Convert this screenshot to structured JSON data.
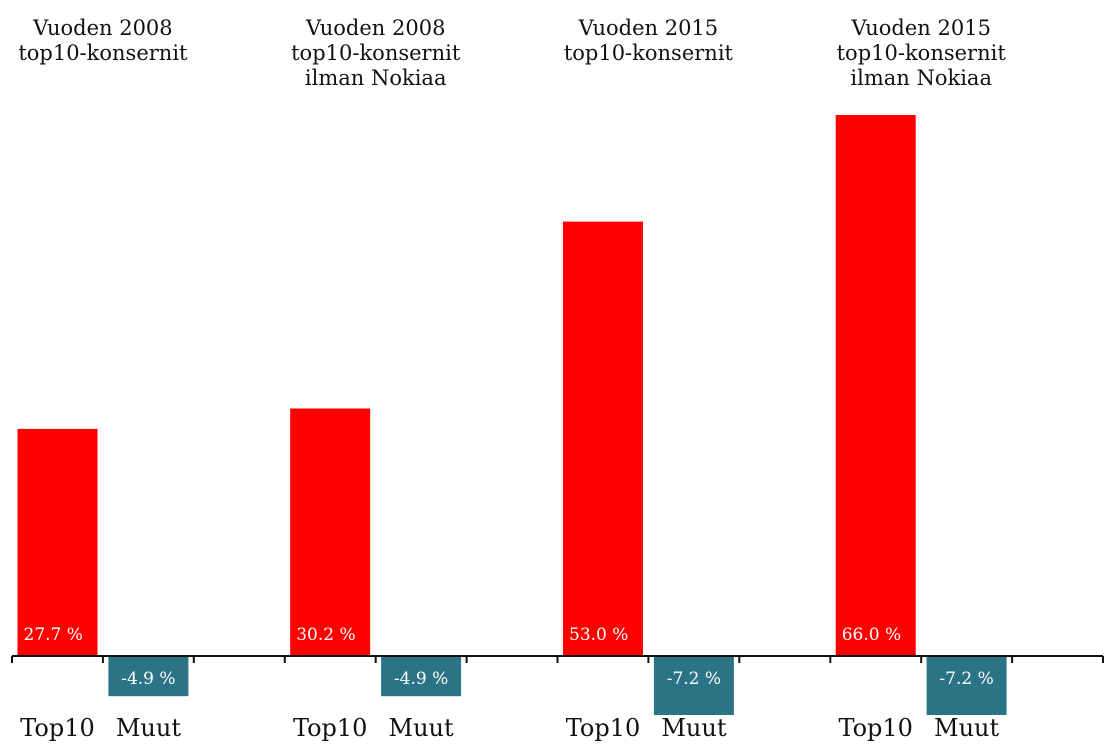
{
  "colors": {
    "top10": "#ff0000",
    "muut": "#2b7485",
    "axis": "#111111"
  },
  "chart_data": {
    "type": "bar",
    "grid": false,
    "ylim": [
      -7.2,
      66.0
    ],
    "groups": [
      {
        "title": [
          "Vuoden 2008",
          "top10-konsernit"
        ],
        "bars": [
          {
            "category": "Top10",
            "value": 27.7,
            "label": "27.7 %"
          },
          {
            "category": "Muut",
            "value": -4.9,
            "label": "-4.9 %"
          }
        ]
      },
      {
        "title": [
          "Vuoden 2008",
          "top10-konsernit",
          "ilman Nokiaa"
        ],
        "bars": [
          {
            "category": "Top10",
            "value": 30.2,
            "label": "30.2 %"
          },
          {
            "category": "Muut",
            "value": -4.9,
            "label": "-4.9 %"
          }
        ]
      },
      {
        "title": [
          "Vuoden 2015",
          "top10-konsernit"
        ],
        "bars": [
          {
            "category": "Top10",
            "value": 53.0,
            "label": "53.0 %"
          },
          {
            "category": "Muut",
            "value": -7.2,
            "label": "-7.2 %"
          }
        ]
      },
      {
        "title": [
          "Vuoden 2015",
          "top10-konsernit",
          "ilman Nokiaa"
        ],
        "bars": [
          {
            "category": "Top10",
            "value": 66.0,
            "label": "66.0 %"
          },
          {
            "category": "Muut",
            "value": -7.2,
            "label": "-7.2 %"
          }
        ]
      }
    ]
  }
}
